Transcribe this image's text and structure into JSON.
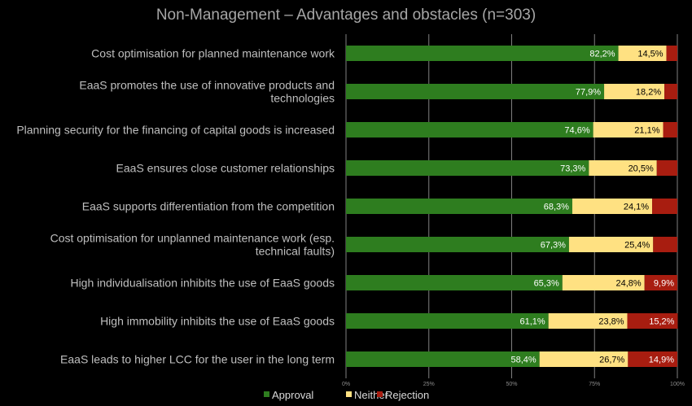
{
  "chart_data": {
    "type": "bar",
    "orientation": "horizontal",
    "stacked": true,
    "title": "Non-Management – Advantages and obstacles (n=303)",
    "categories": [
      [
        "Cost optimisation for planned maintenance work"
      ],
      [
        "EaaS promotes the use of innovative products and",
        "technologies"
      ],
      [
        "Planning security for the financing of capital goods is increased"
      ],
      [
        "EaaS ensures close customer relationships"
      ],
      [
        "EaaS supports differentiation from the competition"
      ],
      [
        "Cost optimisation for unplanned maintenance work (esp.",
        "technical faults)"
      ],
      [
        "High individualisation inhibits the use of EaaS goods"
      ],
      [
        "High immobility inhibits the use of EaaS goods"
      ],
      [
        "EaaS leads to higher LCC for the user in the long term"
      ]
    ],
    "series": [
      {
        "name": "Approval",
        "color": "#2e7d1f",
        "values": [
          82.2,
          77.9,
          74.6,
          73.3,
          68.3,
          67.3,
          65.3,
          61.1,
          58.4
        ],
        "labels": [
          "82,2%",
          "77,9%",
          "74,6%",
          "73,3%",
          "68,3%",
          "67,3%",
          "65,3%",
          "61,1%",
          "58,4%"
        ]
      },
      {
        "name": "Neither",
        "color": "#ffe182",
        "values": [
          14.5,
          18.2,
          21.1,
          20.5,
          24.1,
          25.4,
          24.8,
          23.8,
          26.7
        ],
        "labels": [
          "14,5%",
          "18,2%",
          "21,1%",
          "20,5%",
          "24,1%",
          "25,4%",
          "24,8%",
          "23,8%",
          "26,7%"
        ]
      },
      {
        "name": "Rejection",
        "color": "#a81d10",
        "values": [
          3.3,
          3.9,
          4.3,
          6.2,
          7.6,
          7.3,
          9.9,
          15.2,
          14.9
        ],
        "labels": [
          "",
          "",
          "",
          "",
          "",
          "",
          "9,9%",
          "15,2%",
          "14,9%"
        ]
      }
    ],
    "xlim": [
      0,
      100
    ],
    "xticks": [
      "0%",
      "25%",
      "50%",
      "75%",
      "100%"
    ],
    "grid": true,
    "legend_position": "bottom"
  }
}
